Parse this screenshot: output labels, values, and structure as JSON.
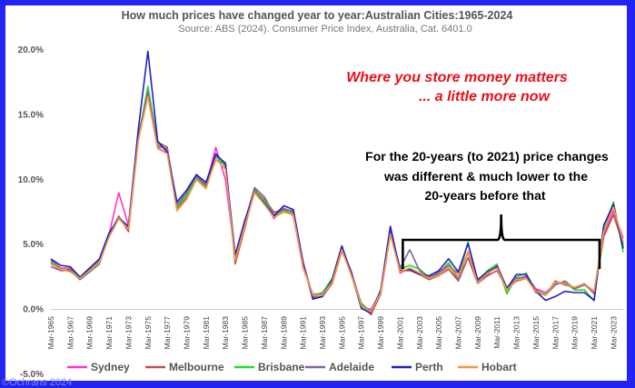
{
  "chart_data": {
    "type": "line",
    "title": "How much prices have changed year to year:Australian Cities:1965-2024",
    "subtitle": "Source: ABS (2024). Consumer Price Index, Australia, Cat. 6401.0",
    "xlabel": "",
    "ylabel": "",
    "ylim": [
      -5,
      20
    ],
    "yticks": [
      "20.0%",
      "15.0%",
      "10.0%",
      "5.0%",
      "0.0%",
      "-5.0%"
    ],
    "ytick_values": [
      20,
      15,
      10,
      5,
      0,
      -5
    ],
    "x_ticks": [
      "Mar-1965",
      "Mar-1967",
      "Mar-1969",
      "Mar-1971",
      "Mar-1973",
      "Mar-1975",
      "Mar-1977",
      "Mar-1979",
      "Mar-1981",
      "Mar-1983",
      "Mar-1985",
      "Mar-1987",
      "Mar-1989",
      "Mar-1991",
      "Mar-1993",
      "Mar-1995",
      "Mar-1997",
      "Mar-1999",
      "Mar-2001",
      "Mar-2003",
      "Mar-2005",
      "Mar-2007",
      "Mar-2009",
      "Mar-2011",
      "Mar-2013",
      "Mar-2015",
      "Mar-2017",
      "Mar-2019",
      "Mar-2021",
      "Mar-2023"
    ],
    "x": [
      1965,
      1966,
      1967,
      1968,
      1969,
      1970,
      1971,
      1972,
      1973,
      1974,
      1975,
      1976,
      1977,
      1978,
      1979,
      1980,
      1981,
      1982,
      1983,
      1984,
      1985,
      1986,
      1987,
      1988,
      1989,
      1990,
      1991,
      1992,
      1993,
      1994,
      1995,
      1996,
      1997,
      1998,
      1999,
      2000,
      2001,
      2002,
      2003,
      2004,
      2005,
      2006,
      2007,
      2008,
      2009,
      2010,
      2011,
      2012,
      2013,
      2014,
      2015,
      2016,
      2017,
      2018,
      2019,
      2020,
      2021,
      2022,
      2023,
      2024
    ],
    "series": [
      {
        "name": "Sydney",
        "color": "#ff33cc",
        "values": [
          3.8,
          3.2,
          3.2,
          2.5,
          3.0,
          3.8,
          5.8,
          9.0,
          6.5,
          13.5,
          16.5,
          12.5,
          12.0,
          8.0,
          9.0,
          10.2,
          9.5,
          12.5,
          10.0,
          4.0,
          6.8,
          9.3,
          8.3,
          7.0,
          7.8,
          7.2,
          3.2,
          1.2,
          1.2,
          2.3,
          4.8,
          2.6,
          0.2,
          0.0,
          1.4,
          6.4,
          2.8,
          3.2,
          2.8,
          2.5,
          2.7,
          3.4,
          2.8,
          4.4,
          2.0,
          2.9,
          3.3,
          1.4,
          2.3,
          2.6,
          1.6,
          1.3,
          2.0,
          2.0,
          1.6,
          1.9,
          1.4,
          5.8,
          7.6,
          5.5
        ]
      },
      {
        "name": "Melbourne",
        "color": "#c0504d",
        "values": [
          3.6,
          3.0,
          3.1,
          2.4,
          3.1,
          3.6,
          5.7,
          7.2,
          6.0,
          13.0,
          16.6,
          12.9,
          12.5,
          7.8,
          8.6,
          10.0,
          9.7,
          11.5,
          11.3,
          3.5,
          6.3,
          9.2,
          8.5,
          7.5,
          7.7,
          7.6,
          3.7,
          0.9,
          1.0,
          2.0,
          4.5,
          2.8,
          0.4,
          -0.4,
          1.2,
          5.8,
          3.0,
          3.0,
          2.7,
          2.3,
          2.6,
          3.1,
          2.2,
          4.0,
          2.0,
          2.6,
          3.0,
          1.6,
          2.2,
          2.4,
          1.5,
          1.1,
          2.2,
          1.9,
          1.7,
          2.0,
          1.2,
          5.6,
          7.3,
          5.0
        ]
      },
      {
        "name": "Brisbane",
        "color": "#22dd22",
        "values": [
          3.7,
          3.1,
          3.0,
          2.5,
          3.0,
          3.7,
          5.6,
          7.0,
          6.3,
          13.2,
          17.2,
          12.8,
          12.3,
          7.9,
          8.8,
          10.1,
          9.4,
          11.8,
          11.0,
          4.2,
          6.6,
          9.1,
          8.4,
          7.2,
          7.6,
          7.4,
          3.5,
          1.1,
          1.3,
          2.4,
          4.9,
          2.7,
          0.5,
          -0.2,
          1.5,
          6.0,
          3.1,
          3.4,
          3.1,
          2.5,
          2.8,
          3.6,
          2.5,
          5.2,
          2.2,
          3.0,
          3.5,
          1.2,
          2.5,
          2.8,
          1.4,
          1.2,
          2.0,
          2.1,
          1.5,
          1.5,
          0.7,
          6.3,
          8.3,
          4.4
        ]
      },
      {
        "name": "Adelaide",
        "color": "#8064a2",
        "values": [
          3.3,
          3.0,
          3.0,
          2.3,
          2.9,
          3.5,
          5.8,
          7.1,
          6.4,
          13.2,
          16.8,
          12.6,
          12.4,
          8.1,
          9.0,
          10.3,
          9.6,
          11.9,
          11.3,
          3.9,
          6.8,
          9.4,
          8.7,
          7.3,
          7.8,
          7.5,
          3.6,
          1.0,
          1.2,
          2.2,
          4.7,
          2.9,
          0.3,
          -0.1,
          1.3,
          6.1,
          3.2,
          4.6,
          3.0,
          2.4,
          2.9,
          3.4,
          2.3,
          4.5,
          2.1,
          2.7,
          3.4,
          1.7,
          2.4,
          2.5,
          1.3,
          1.1,
          1.9,
          2.2,
          1.6,
          1.9,
          1.4,
          5.9,
          8.1,
          4.7
        ]
      },
      {
        "name": "Perth",
        "color": "#2020c0",
        "values": [
          3.9,
          3.4,
          3.3,
          2.5,
          3.2,
          3.9,
          5.9,
          7.0,
          6.4,
          13.8,
          19.9,
          13.0,
          12.1,
          8.3,
          9.2,
          10.4,
          9.8,
          12.0,
          11.2,
          4.2,
          6.9,
          9.0,
          8.2,
          7.2,
          8.0,
          7.7,
          3.6,
          0.8,
          1.0,
          2.3,
          4.9,
          2.7,
          0.1,
          -0.3,
          1.5,
          6.4,
          3.0,
          3.1,
          2.7,
          2.6,
          3.0,
          3.9,
          2.9,
          5.1,
          2.3,
          2.9,
          3.3,
          1.6,
          2.7,
          2.7,
          1.4,
          0.7,
          1.0,
          1.4,
          1.3,
          1.3,
          0.7,
          6.5,
          8.1,
          4.7
        ]
      },
      {
        "name": "Hobart",
        "color": "#f79646",
        "values": [
          3.5,
          3.1,
          2.9,
          2.4,
          3.0,
          3.6,
          5.6,
          7.0,
          6.2,
          13.0,
          16.4,
          12.4,
          12.0,
          7.6,
          8.5,
          10.0,
          9.3,
          11.6,
          10.8,
          3.8,
          6.5,
          9.0,
          8.1,
          7.1,
          7.5,
          7.3,
          3.3,
          1.1,
          1.1,
          2.1,
          4.6,
          2.6,
          0.3,
          -0.2,
          1.3,
          5.8,
          2.9,
          3.2,
          2.8,
          2.4,
          2.6,
          3.3,
          2.5,
          4.5,
          2.0,
          2.8,
          3.2,
          1.5,
          2.3,
          2.4,
          1.4,
          1.1,
          2.1,
          2.0,
          1.7,
          2.0,
          1.4,
          6.0,
          7.9,
          5.2
        ]
      }
    ],
    "legend_position": "bottom",
    "grid": false,
    "annotations": {
      "red_line1": "Where you store money matters",
      "red_line2": "... a little more now",
      "black_line1": "For the 20-years (to 2021) price changes",
      "black_line2": "was different & much lower to the",
      "black_line3": "20-years  before that",
      "brace_from": 2001,
      "brace_to": 2021
    },
    "watermark": "©Ochrans 2024"
  }
}
